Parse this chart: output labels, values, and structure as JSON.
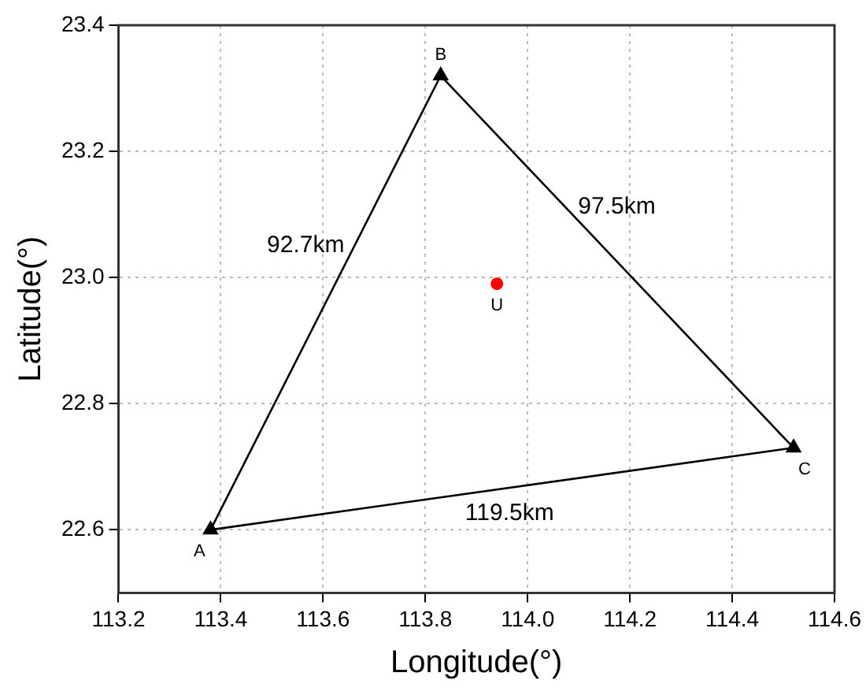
{
  "chart_data": {
    "type": "line",
    "xlabel": "Longitude(°)",
    "ylabel": "Latitude(°)",
    "xlim": [
      113.2,
      114.6
    ],
    "xticks": [
      113.2,
      113.4,
      113.6,
      113.8,
      {
        "value": 114.0,
        "label": "114.0"
      },
      114.2,
      114.4,
      114.6
    ],
    "ylim": [
      22.5,
      23.4
    ],
    "yticks": [
      22.6,
      22.8,
      {
        "value": 23.0,
        "label": "23.0"
      },
      23.2,
      23.4
    ],
    "grid": true,
    "legend": false,
    "series": [
      {
        "type": "line",
        "color": "#000000",
        "marker": "none",
        "line_style": "solid",
        "x": [
          113.38,
          113.83
        ],
        "values": [
          22.6,
          23.32
        ]
      },
      {
        "type": "line",
        "color": "#000000",
        "marker": "none",
        "line_style": "solid",
        "x": [
          113.83,
          114.52
        ],
        "values": [
          23.32,
          22.73
        ]
      },
      {
        "type": "line",
        "color": "#000000",
        "marker": "none",
        "line_style": "solid",
        "x": [
          113.38,
          114.52
        ],
        "values": [
          22.6,
          22.73
        ]
      },
      {
        "type": "scatter",
        "color": "#000000",
        "marker": "triangle",
        "x": [
          113.38,
          113.83,
          114.52
        ],
        "values": [
          22.6,
          23.32,
          22.73
        ]
      },
      {
        "type": "scatter",
        "color": "#ff0000",
        "marker": "circle",
        "x": [
          113.94
        ],
        "values": [
          22.99
        ]
      }
    ],
    "annotations": [
      {
        "text": "A",
        "x": 113.38,
        "y": 22.6
      },
      {
        "text": "B",
        "x": 113.83,
        "y": 23.32
      },
      {
        "text": "C",
        "x": 114.52,
        "y": 22.73
      },
      {
        "text": "U",
        "x": 113.94,
        "y": 22.99
      },
      "92.7km",
      "97.5km",
      "119.5km"
    ]
  }
}
